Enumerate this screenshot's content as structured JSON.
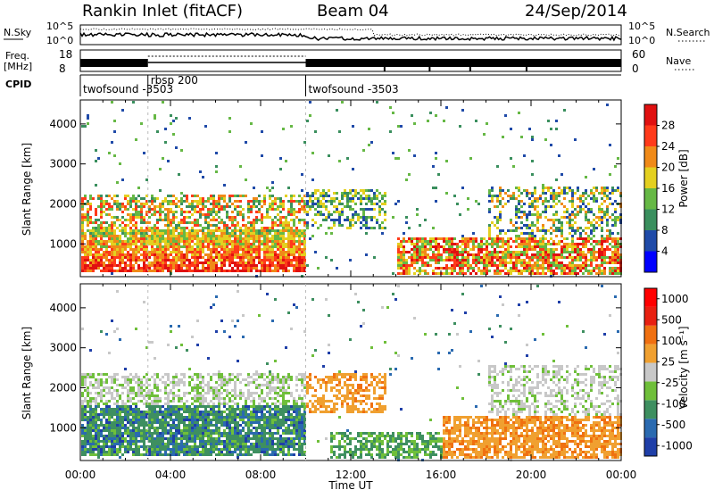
{
  "header": {
    "title": "Rankin Inlet (fitACF)",
    "beam": "Beam 04",
    "date": "24/Sep/2014"
  },
  "top_panels": {
    "nsky_label": "N.Sky",
    "nsearch_label": "N.Search",
    "nsky_ticks": [
      "10^5",
      "10^0"
    ],
    "nsearch_ticks": [
      "10^5",
      "10^0"
    ],
    "freq_label_1": "Freq.",
    "freq_label_2": "[MHz]",
    "freq_ticks": [
      "18",
      "8"
    ],
    "nave_label": "Nave",
    "nave_ticks": [
      "60",
      "0"
    ],
    "cpid_label": "CPID",
    "cpid_segments": [
      {
        "name": "twofsound",
        "id": "-3503",
        "start_hour": 0,
        "end_hour": 3
      },
      {
        "name": "rbsp",
        "id": "200",
        "start_hour": 3,
        "end_hour": 10
      },
      {
        "name": "twofsound",
        "id": "-3503",
        "start_hour": 10,
        "end_hour": 24
      }
    ]
  },
  "chart_data": [
    {
      "type": "heatmap",
      "name": "power",
      "ylabel": "Slant Range [km]",
      "y_ticks": [
        1000,
        2000,
        3000,
        4000
      ],
      "ylim": [
        180,
        4600
      ],
      "xlim": [
        0,
        24
      ],
      "colorbar_label": "Power [dB]",
      "colorbar_ticks": [
        "4",
        "8",
        "12",
        "16",
        "20",
        "24",
        "28"
      ],
      "colors": [
        "#0000ff",
        "#1f4aa8",
        "#3a8f5e",
        "#66b845",
        "#e4d020",
        "#f08a18",
        "#ff3a1a",
        "#e01010"
      ]
    },
    {
      "type": "heatmap",
      "name": "velocity",
      "ylabel": "Slant Range [km]",
      "y_ticks": [
        1000,
        2000,
        3000,
        4000
      ],
      "ylim": [
        180,
        4600
      ],
      "xlim": [
        0,
        24
      ],
      "colorbar_label": "Velocity [m s⁻¹]",
      "colorbar_ticks": [
        "1000",
        "500",
        "100",
        "25",
        "-25",
        "-100",
        "-500",
        "-1000"
      ],
      "colors": [
        "#1f3fa8",
        "#2a6ab0",
        "#3e8f60",
        "#6fbf3a",
        "#c8c8c8",
        "#f0a030",
        "#f07010",
        "#e82010",
        "#ff0000"
      ]
    }
  ],
  "x_axis": {
    "label": "Time UT",
    "ticks": [
      "00:00",
      "04:00",
      "08:00",
      "12:00",
      "16:00",
      "20:00",
      "00:00"
    ]
  }
}
